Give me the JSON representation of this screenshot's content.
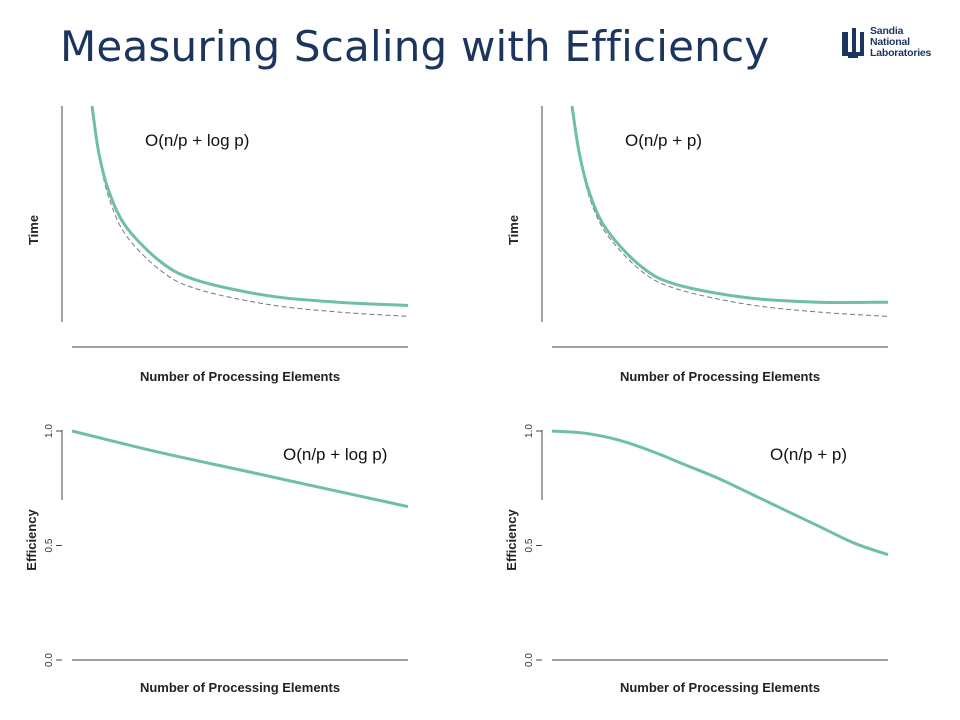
{
  "slide": {
    "title": "Measuring Scaling with Efficiency",
    "logo": {
      "lines": [
        "Sandia",
        "National",
        "Laboratories"
      ],
      "color": "#1b355f"
    }
  },
  "colors": {
    "curve": "#6fbfa2",
    "ideal": "#777777",
    "axis": "#444444"
  },
  "chart_data": [
    {
      "type": "line",
      "annotation": "O(n/p + log p)",
      "xlabel": "Number of Processing Elements",
      "ylabel": "Time",
      "yticks": [],
      "series": [
        {
          "style": "solid",
          "x": [
            1.0,
            1.2,
            1.5,
            2,
            3,
            4,
            6,
            8,
            10
          ],
          "y": [
            1.0,
            0.78,
            0.6,
            0.44,
            0.28,
            0.2,
            0.13,
            0.1,
            0.085
          ]
        },
        {
          "style": "dashed",
          "x": [
            1.0,
            1.2,
            1.5,
            2,
            3,
            4,
            6,
            8,
            10
          ],
          "y": [
            1.0,
            0.77,
            0.57,
            0.4,
            0.24,
            0.16,
            0.09,
            0.055,
            0.035
          ]
        }
      ]
    },
    {
      "type": "line",
      "annotation": "O(n/p + p)",
      "xlabel": "Number of Processing Elements",
      "ylabel": "Time",
      "yticks": [],
      "series": [
        {
          "style": "solid",
          "x": [
            1.0,
            1.2,
            1.5,
            2,
            3,
            4,
            6,
            8,
            10
          ],
          "y": [
            1.0,
            0.79,
            0.6,
            0.43,
            0.26,
            0.18,
            0.12,
            0.1,
            0.1
          ]
        },
        {
          "style": "dashed",
          "x": [
            1.0,
            1.2,
            1.5,
            2,
            3,
            4,
            6,
            8,
            10
          ],
          "y": [
            1.0,
            0.78,
            0.58,
            0.41,
            0.24,
            0.16,
            0.09,
            0.055,
            0.035
          ]
        }
      ]
    },
    {
      "type": "line",
      "annotation": "O(n/p + log p)",
      "xlabel": "Number of Processing Elements",
      "ylabel": "Efficiency",
      "ylim": [
        0,
        1
      ],
      "yticks": [
        "0.0",
        "0.5",
        "1.0"
      ],
      "series": [
        {
          "style": "solid",
          "x": [
            0,
            0.25,
            0.5,
            0.75,
            1
          ],
          "y": [
            1.0,
            0.91,
            0.83,
            0.75,
            0.67
          ]
        }
      ]
    },
    {
      "type": "line",
      "annotation": "O(n/p + p)",
      "xlabel": "Number of Processing Elements",
      "ylabel": "Efficiency",
      "ylim": [
        0,
        1
      ],
      "yticks": [
        "0.0",
        "0.5",
        "1.0"
      ],
      "series": [
        {
          "style": "solid",
          "x": [
            0,
            0.1,
            0.2,
            0.3,
            0.4,
            0.5,
            0.6,
            0.7,
            0.8,
            0.9,
            1.0
          ],
          "y": [
            1.0,
            0.99,
            0.96,
            0.91,
            0.85,
            0.79,
            0.72,
            0.65,
            0.58,
            0.51,
            0.46
          ]
        }
      ]
    }
  ]
}
